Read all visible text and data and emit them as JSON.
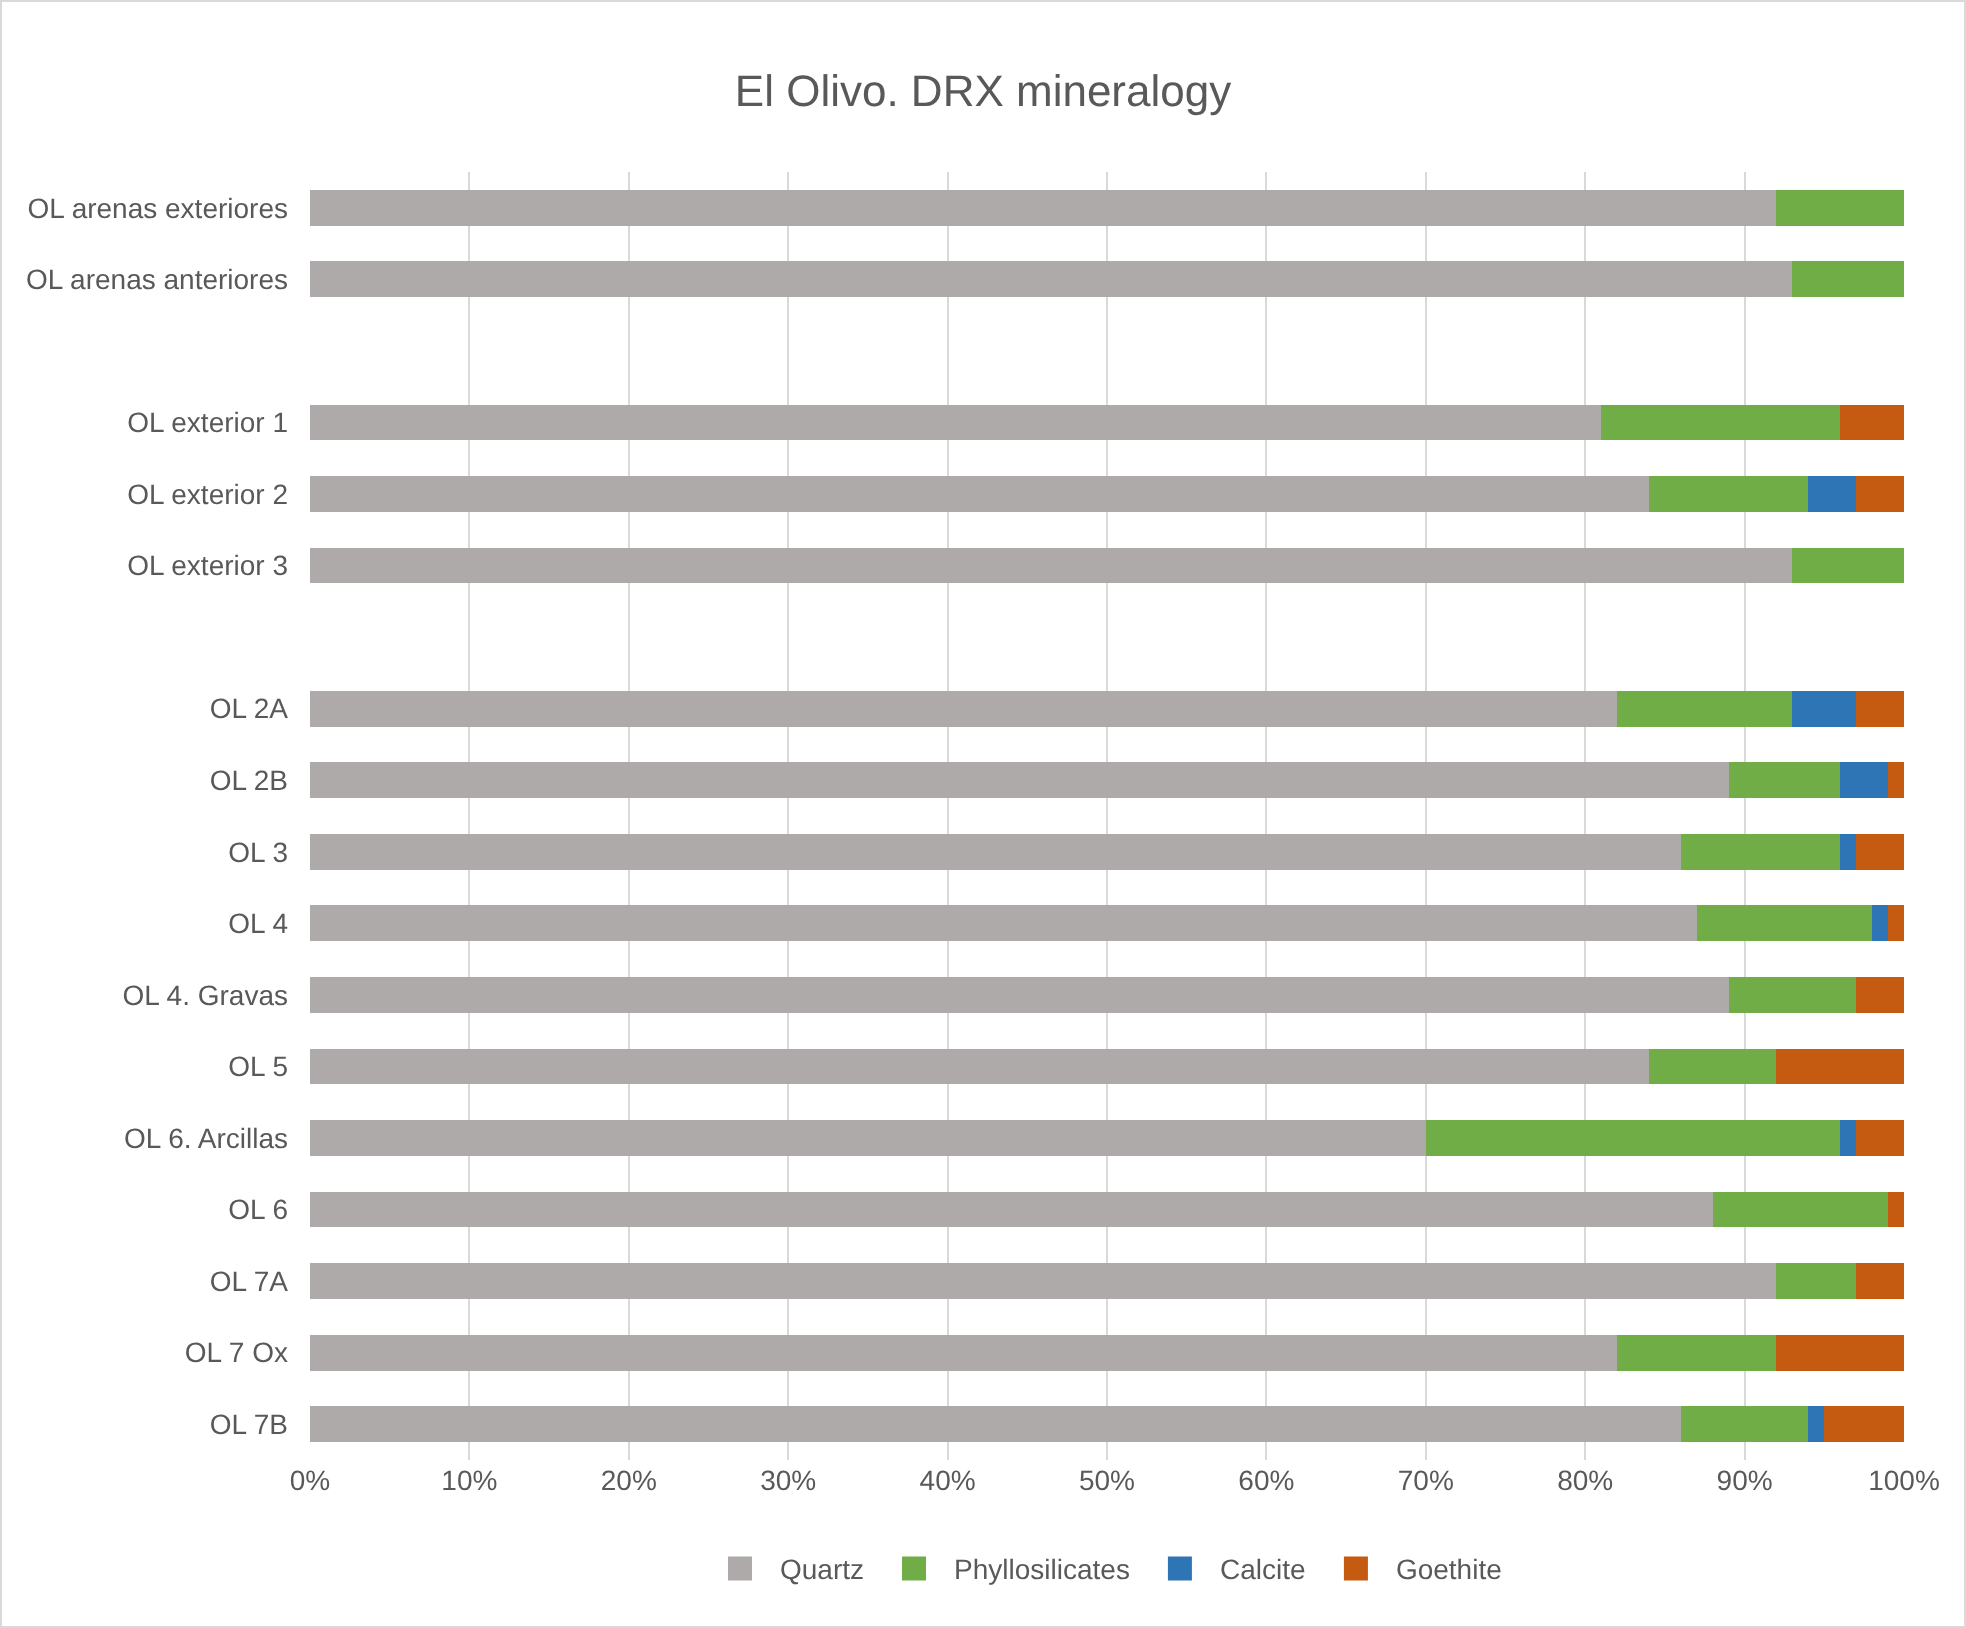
{
  "chart_data": {
    "type": "bar",
    "orientation": "horizontal",
    "stacked": true,
    "title": "El Olivo. DRX mineralogy",
    "categories": [
      "OL arenas exteriores",
      "OL arenas anteriores",
      null,
      "OL exterior 1",
      "OL exterior 2",
      "OL exterior 3",
      null,
      "OL 2A",
      "OL 2B",
      "OL 3",
      "OL 4",
      "OL 4. Gravas",
      "OL 5",
      "OL 6. Arcillas",
      "OL 6",
      "OL 7A",
      "OL 7 Ox",
      "OL 7B"
    ],
    "series": [
      {
        "name": "Quartz",
        "color": "#aeaaaa",
        "values": [
          92,
          93,
          null,
          81,
          84,
          93,
          null,
          82,
          89,
          86,
          87,
          89,
          84,
          70,
          88,
          92,
          82,
          86
        ]
      },
      {
        "name": "Phyllosilicates",
        "color": "#70ad47",
        "values": [
          8,
          7,
          null,
          15,
          10,
          7,
          null,
          11,
          7,
          10,
          11,
          8,
          8,
          26,
          11,
          5,
          10,
          8
        ]
      },
      {
        "name": "Calcite",
        "color": "#2e75b6",
        "values": [
          null,
          null,
          null,
          null,
          3,
          null,
          null,
          4,
          3,
          1,
          1,
          null,
          null,
          1,
          null,
          null,
          null,
          1
        ]
      },
      {
        "name": "Goethite",
        "color": "#c55a11",
        "values": [
          null,
          null,
          null,
          4,
          3,
          null,
          null,
          3,
          1,
          3,
          1,
          3,
          8,
          3,
          1,
          3,
          8,
          5
        ]
      }
    ],
    "xlim": [
      0,
      100
    ],
    "xticks": [
      {
        "value": 0,
        "label": "0%"
      },
      {
        "value": 10,
        "label": "10%"
      },
      {
        "value": 20,
        "label": "20%"
      },
      {
        "value": 30,
        "label": "30%"
      },
      {
        "value": 40,
        "label": "40%"
      },
      {
        "value": 50,
        "label": "50%"
      },
      {
        "value": 60,
        "label": "60%"
      },
      {
        "value": 70,
        "label": "70%"
      },
      {
        "value": 80,
        "label": "80%"
      },
      {
        "value": 90,
        "label": "90%"
      },
      {
        "value": 100,
        "label": "100%"
      }
    ],
    "grid": "x",
    "legend": "bottom"
  }
}
